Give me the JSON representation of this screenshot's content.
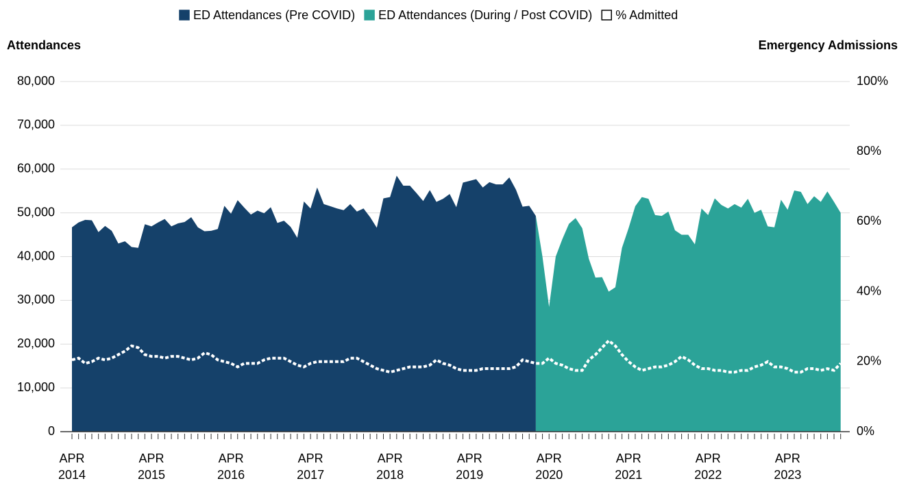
{
  "chart_data": {
    "type": "area",
    "y_axis_label": "Attendances",
    "y2_axis_label": "Emergency Admissions",
    "categories": [
      "APR 2014",
      null,
      null,
      null,
      null,
      null,
      null,
      null,
      null,
      null,
      null,
      null,
      "APR 2015",
      null,
      null,
      null,
      null,
      null,
      null,
      null,
      null,
      null,
      null,
      null,
      "APR 2016",
      null,
      null,
      null,
      null,
      null,
      null,
      null,
      null,
      null,
      null,
      null,
      "APR 2017",
      null,
      null,
      null,
      null,
      null,
      null,
      null,
      null,
      null,
      null,
      null,
      "APR 2018",
      null,
      null,
      null,
      null,
      null,
      null,
      null,
      null,
      null,
      null,
      null,
      "APR 2019",
      null,
      null,
      null,
      null,
      null,
      null,
      null,
      null,
      null,
      null,
      null,
      "APR 2020",
      null,
      null,
      null,
      null,
      null,
      null,
      null,
      null,
      null,
      null,
      null,
      "APR 2021",
      null,
      null,
      null,
      null,
      null,
      null,
      null,
      null,
      null,
      null,
      null,
      "APR 2022",
      null,
      null,
      null,
      null,
      null,
      null,
      null,
      null,
      null,
      null,
      null,
      "APR 2023",
      null,
      null,
      null,
      null,
      null,
      null,
      null,
      null
    ],
    "series": [
      {
        "name": "ED Attendances (Pre COVID)",
        "color": "#15416a",
        "type": "area",
        "values": [
          46700,
          47800,
          48400,
          48300,
          45600,
          47000,
          45900,
          43000,
          43500,
          42200,
          42000,
          47400,
          46900,
          47800,
          48600,
          46900,
          47600,
          47900,
          49000,
          46700,
          45800,
          45900,
          46300,
          51600,
          49800,
          52900,
          51200,
          49600,
          50500,
          49900,
          51300,
          47700,
          48200,
          46800,
          44300,
          52600,
          51000,
          55800,
          52000,
          51500,
          51000,
          50600,
          52000,
          50300,
          51000,
          49000,
          46600,
          53300,
          53600,
          58500,
          56200,
          56200,
          54500,
          52700,
          55200,
          52500,
          53200,
          54300,
          51300,
          56900,
          57300,
          57700,
          55800,
          57000,
          56500,
          56500,
          58100,
          55300,
          51400,
          51600,
          49300,
          null,
          null,
          null,
          null,
          null,
          null,
          null,
          null,
          null,
          null,
          null,
          null,
          null,
          null,
          null,
          null,
          null,
          null,
          null,
          null,
          null,
          null,
          null,
          null,
          null,
          null,
          null,
          null,
          null,
          null,
          null,
          null,
          null,
          null,
          null,
          null,
          null,
          null,
          null,
          null,
          null,
          null,
          null,
          null,
          null,
          null
        ]
      },
      {
        "name": "ED Attendances (During / Post COVID)",
        "color": "#2ba398",
        "type": "area",
        "values": [
          null,
          null,
          null,
          null,
          null,
          null,
          null,
          null,
          null,
          null,
          null,
          null,
          null,
          null,
          null,
          null,
          null,
          null,
          null,
          null,
          null,
          null,
          null,
          null,
          null,
          null,
          null,
          null,
          null,
          null,
          null,
          null,
          null,
          null,
          null,
          null,
          null,
          null,
          null,
          null,
          null,
          null,
          null,
          null,
          null,
          null,
          null,
          null,
          null,
          null,
          null,
          null,
          null,
          null,
          null,
          null,
          null,
          null,
          null,
          null,
          null,
          null,
          null,
          null,
          null,
          null,
          null,
          null,
          null,
          null,
          49300,
          40000,
          28500,
          40000,
          44000,
          47500,
          48800,
          46500,
          39500,
          35200,
          35300,
          32000,
          33000,
          42000,
          46500,
          51500,
          53600,
          53200,
          49500,
          49300,
          50300,
          46000,
          45000,
          45000,
          42800,
          51000,
          49500,
          53300,
          51800,
          51000,
          52000,
          51200,
          53200,
          50000,
          50700,
          46900,
          46700,
          53000,
          50700,
          55100,
          54800,
          52000,
          53800,
          52500,
          54900,
          52500,
          50000
        ]
      },
      {
        "name": "% Admitted",
        "color": "#ffffff",
        "type": "line",
        "axis": "y2",
        "values": [
          20.5,
          21,
          19.5,
          20,
          21,
          20.5,
          21,
          22,
          23,
          24.5,
          24,
          22,
          21.5,
          21.5,
          21,
          21.5,
          21.5,
          21,
          20.5,
          21,
          22.5,
          22,
          20.5,
          20,
          19.5,
          18.5,
          19.5,
          19.5,
          19.5,
          20.5,
          21,
          21,
          21,
          20,
          19,
          18.5,
          19.5,
          20,
          20,
          20,
          20,
          20,
          21,
          21,
          20,
          19,
          18,
          17.5,
          17,
          17.5,
          18,
          18.5,
          18.5,
          18.5,
          19,
          20.5,
          19.5,
          19,
          18,
          17.5,
          17.5,
          17.5,
          18,
          18,
          18,
          18,
          18,
          18.5,
          20.5,
          20,
          19.5,
          19.5,
          21,
          19.5,
          19,
          18,
          17.5,
          17.5,
          20.5,
          22,
          24,
          26,
          24.5,
          22,
          20,
          18.5,
          17.5,
          18,
          18.5,
          18.5,
          19,
          20,
          21.5,
          20.5,
          19,
          18,
          18,
          17.5,
          17.5,
          17,
          17,
          17.5,
          17.5,
          18.5,
          19,
          20,
          18.5,
          18.5,
          18,
          17,
          17,
          18,
          18,
          17.5,
          18,
          17.5,
          19.5
        ]
      }
    ],
    "ylim": [
      0,
      80000
    ],
    "yticks": [
      0,
      {
        "value": 10000,
        "label": "10,000"
      },
      {
        "value": 20000,
        "label": "20,000"
      },
      {
        "value": 30000,
        "label": "30,000"
      },
      {
        "value": 40000,
        "label": "40,000"
      },
      {
        "value": 50000,
        "label": "50,000"
      },
      {
        "value": 60000,
        "label": "60,000"
      },
      {
        "value": 70000,
        "label": "70,000"
      },
      {
        "value": 80000,
        "label": "80,000"
      }
    ],
    "y2lim": [
      0,
      100
    ],
    "y2ticks": [
      {
        "value": 0,
        "label": "0%"
      },
      {
        "value": 20,
        "label": "20%"
      },
      {
        "value": 40,
        "label": "40%"
      },
      {
        "value": 60,
        "label": "60%"
      },
      {
        "value": 80,
        "label": "80%"
      },
      {
        "value": 100,
        "label": "100%"
      }
    ],
    "grid": true,
    "legend": "top"
  }
}
